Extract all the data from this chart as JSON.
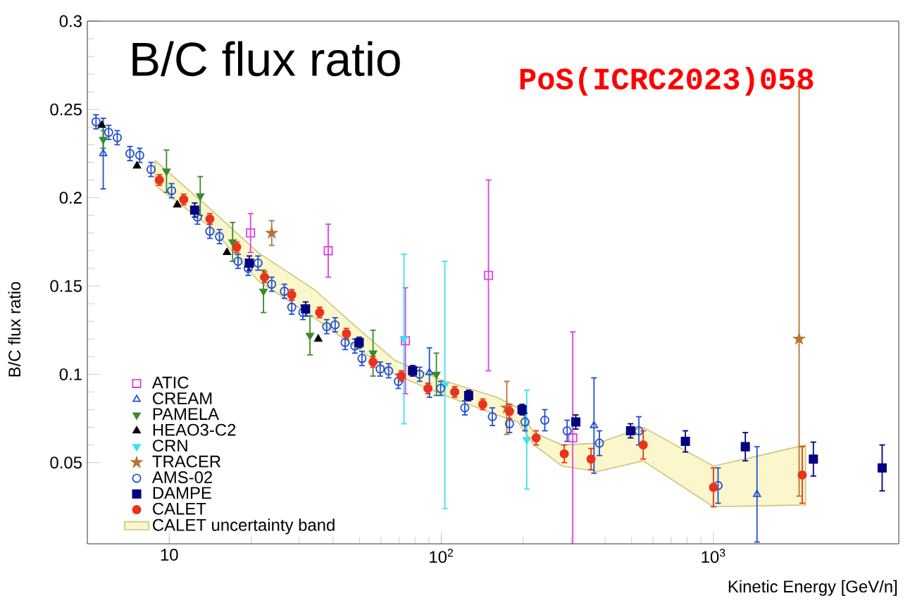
{
  "chart_data": {
    "type": "scatter",
    "title": "B/C flux ratio",
    "xlabel": "Kinetic Energy [GeV/n]",
    "ylabel": "B/C flux ratio",
    "annotations": [
      "PoS(ICRC2023)058"
    ],
    "log": "x",
    "xlim": [
      5,
      4800
    ],
    "ylim": [
      0.004,
      0.3
    ],
    "xticks": [
      10,
      {
        "value": 100,
        "label": "10$^{2}$"
      },
      {
        "value": 1000,
        "label": "10$^{3}$"
      }
    ],
    "yticks": [
      0.05,
      0.1,
      0.15,
      0.2,
      0.25,
      0.3
    ],
    "legend": "bottom left",
    "series": [
      {
        "name": "CALET uncertainty band",
        "type": "area",
        "color": "#fbf6cc",
        "x": [
          8.88,
          14.3,
          21.2,
          34.1,
          46.9,
          67.3,
          99.4,
          160,
          191,
          219,
          278,
          376,
          552,
          1000,
          2180
        ],
        "upper": [
          0.221,
          0.193,
          0.169,
          0.148,
          0.129,
          0.108,
          0.097,
          0.087,
          0.081,
          0.067,
          0.06,
          0.061,
          0.07,
          0.048,
          0.06
        ],
        "lower": [
          0.207,
          0.183,
          0.153,
          0.132,
          0.117,
          0.1,
          0.089,
          0.077,
          0.073,
          0.06,
          0.048,
          0.045,
          0.051,
          0.025,
          0.026
        ],
        "values": [
          null,
          null,
          null,
          null,
          null,
          null,
          null,
          null,
          null,
          null,
          null,
          null,
          null,
          null,
          null
        ]
      },
      {
        "name": "ATIC",
        "color": "#e040e0",
        "marker": "square-open",
        "x": [
          19.9,
          38.4,
          73.8,
          149,
          304
        ],
        "values": [
          0.18,
          0.17,
          0.119,
          0.156,
          0.064
        ],
        "errors": [
          0.011,
          0.015,
          0.03,
          0.054,
          0.06
        ]
      },
      {
        "name": "CREAM",
        "color": "#2050d0",
        "marker": "triangle-open",
        "x": [
          5.72,
          90.4,
          364,
          1446
        ],
        "values": [
          0.225,
          0.101,
          0.071,
          0.032
        ],
        "errors": [
          0.02,
          0.014,
          0.027,
          0.027
        ]
      },
      {
        "name": "PAMELA",
        "color": "#3a8a2a",
        "marker": "triangle-down",
        "x": [
          5.72,
          9.77,
          13.0,
          17.1,
          22.2,
          32.9,
          56.1,
          95.9
        ],
        "values": [
          0.233,
          0.215,
          0.201,
          0.175,
          0.147,
          0.122,
          0.112,
          0.1
        ],
        "errors": [
          0.005,
          0.012,
          0.011,
          0.011,
          0.012,
          0.011,
          0.013,
          0.012
        ]
      },
      {
        "name": "HEAO3-C2",
        "color": "#000000",
        "marker": "triangle",
        "x": [
          5.65,
          7.61,
          10.7,
          16.3,
          35.3
        ],
        "values": [
          0.241,
          0.218,
          0.196,
          0.169,
          0.12
        ]
      },
      {
        "name": "CRN",
        "color": "#40e0f0",
        "marker": "triangle-down",
        "x": [
          72.9,
          103,
          206
        ],
        "values": [
          0.12,
          0.094,
          0.063
        ],
        "errors": [
          0.048,
          0.07,
          0.028
        ]
      },
      {
        "name": "TRACER",
        "color": "#b87333",
        "marker": "star",
        "x": [
          23.8,
          174,
          2065
        ],
        "values": [
          0.18,
          0.081,
          0.12
        ],
        "errors": [
          0.007,
          0.015,
          [
            0.031,
            0.263
          ]
        ]
      },
      {
        "name": "AMS-02",
        "color": "#2050d0",
        "marker": "circle-open",
        "x": [
          5.38,
          5.99,
          6.44,
          7.17,
          7.79,
          8.57,
          10.2,
          12.7,
          14.1,
          15.3,
          17.9,
          19.5,
          21.2,
          23.8,
          26.5,
          28.2,
          31.0,
          37.9,
          40.7,
          44.3,
          48.1,
          51.1,
          59.6,
          64.0,
          69.5,
          83.2,
          99.4,
          122,
          154,
          178,
          203,
          240,
          290,
          381,
          532,
          1040
        ],
        "values": [
          0.243,
          0.237,
          0.234,
          0.225,
          0.224,
          0.216,
          0.204,
          0.189,
          0.181,
          0.178,
          0.164,
          0.16,
          0.163,
          0.151,
          0.147,
          0.138,
          0.135,
          0.127,
          0.128,
          0.118,
          0.116,
          0.109,
          0.103,
          0.102,
          0.096,
          0.1,
          0.092,
          0.081,
          0.076,
          0.072,
          0.073,
          0.074,
          0.068,
          0.061,
          0.068,
          0.037
        ],
        "errors": [
          0.004,
          0.004,
          0.004,
          0.004,
          0.004,
          0.004,
          0.004,
          0.004,
          0.004,
          0.004,
          0.004,
          0.004,
          0.004,
          0.004,
          0.004,
          0.004,
          0.004,
          0.004,
          0.004,
          0.004,
          0.004,
          0.004,
          0.004,
          0.004,
          0.004,
          0.004,
          0.004,
          0.004,
          0.005,
          0.005,
          0.005,
          0.006,
          0.006,
          0.007,
          0.008,
          0.01
        ]
      },
      {
        "name": "DAMPE",
        "color": "#000080",
        "marker": "square",
        "x": [
          12.4,
          19.7,
          31.7,
          49.9,
          78.4,
          126,
          198,
          312,
          496,
          789,
          1310,
          2330,
          4170
        ],
        "values": [
          0.193,
          0.163,
          0.137,
          0.118,
          0.102,
          0.088,
          0.08,
          0.073,
          0.068,
          0.062,
          0.059,
          0.052,
          0.047
        ],
        "errors": [
          0.004,
          0.004,
          0.004,
          0.003,
          0.003,
          0.003,
          0.003,
          0.004,
          0.004,
          0.006,
          0.008,
          0.0096,
          0.013
        ]
      },
      {
        "name": "CALET",
        "color": "#e8341c",
        "marker": "circle",
        "x": [
          9.2,
          11.3,
          14.1,
          17.7,
          22.4,
          28.2,
          35.7,
          44.8,
          56.1,
          71.3,
          89.3,
          112,
          142,
          178,
          223,
          283,
          355,
          552,
          1000,
          2120
        ],
        "values": [
          0.21,
          0.199,
          0.188,
          0.172,
          0.155,
          0.145,
          0.135,
          0.123,
          0.107,
          0.099,
          0.092,
          0.09,
          0.083,
          0.079,
          0.064,
          0.055,
          0.052,
          0.06,
          0.036,
          0.043
        ],
        "errors": [
          0.003,
          0.003,
          0.003,
          0.003,
          0.003,
          0.003,
          0.003,
          0.003,
          0.003,
          0.003,
          0.003,
          0.003,
          0.003,
          0.004,
          0.004,
          0.005,
          0.006,
          0.008,
          0.011,
          0.016
        ]
      }
    ]
  }
}
